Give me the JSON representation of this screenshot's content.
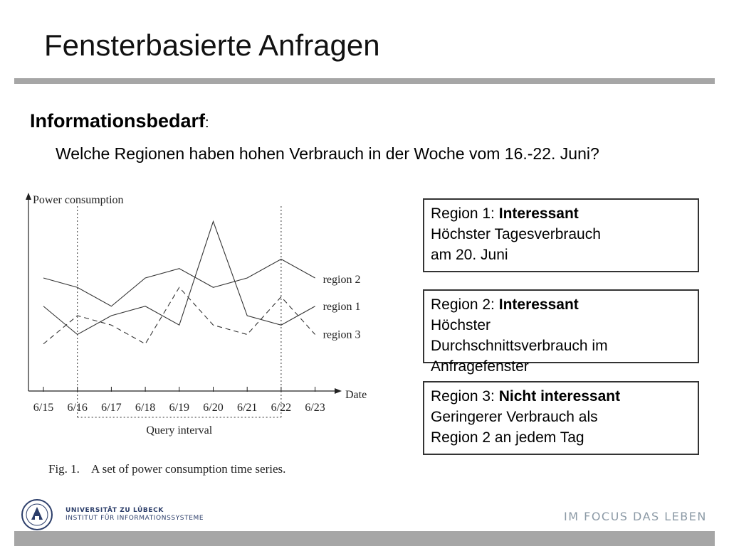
{
  "slide": {
    "title": "Fensterbasierte Anfragen",
    "heading": "Informationsbedarf",
    "heading_colon": ":",
    "question": "Welche Regionen haben hohen Verbrauch in der Woche vom 16.-22. Juni?"
  },
  "boxes": [
    {
      "label": "Region 1: ",
      "verdict": "Interessant",
      "text_line1": "Höchster Tagesverbrauch",
      "text_line2": "am 20. Juni"
    },
    {
      "label": "Region 2: ",
      "verdict": "Interessant",
      "text_line1": "Höchster",
      "text_line2": "Durchschnittsverbrauch im",
      "text_line3": "Anfragefenster"
    },
    {
      "label": "Region 3: ",
      "verdict": "Nicht interessant",
      "text_line1": "Geringerer Verbrauch als",
      "text_line2": "Region 2 an jedem Tag"
    }
  ],
  "chart_data": {
    "type": "line",
    "ylabel": "Power consumption",
    "xlabel": "Date",
    "categories": [
      "6/15",
      "6/16",
      "6/17",
      "6/18",
      "6/19",
      "6/20",
      "6/21",
      "6/22",
      "6/23"
    ],
    "series": [
      {
        "name": "region 2",
        "style": "solid",
        "values": [
          6.0,
          5.5,
          4.5,
          6.0,
          6.5,
          5.5,
          6.0,
          7.0,
          6.0
        ]
      },
      {
        "name": "region 1",
        "style": "solid",
        "values": [
          4.5,
          3.0,
          4.0,
          4.5,
          3.5,
          9.0,
          4.0,
          3.5,
          4.5
        ]
      },
      {
        "name": "region 3",
        "style": "dashed",
        "values": [
          2.5,
          4.0,
          3.5,
          2.5,
          5.5,
          3.5,
          3.0,
          5.0,
          3.0
        ]
      }
    ],
    "ylim": [
      0,
      10
    ],
    "query_interval": {
      "start": "6/16",
      "end": "6/22",
      "label": "Query interval"
    },
    "caption": "Fig. 1.    A set of power consumption time series."
  },
  "footer": {
    "university_line1": "UNIVERSITÄT ZU LÜBECK",
    "university_line2": "INSTITUT FÜR INFORMATIONSSYSTEME",
    "slogan": "IM FOCUS DAS LEBEN"
  },
  "colors": {
    "rule": "#a6a6a6",
    "slogan": "#8c9aa6",
    "logo": "#2c3e6a"
  }
}
